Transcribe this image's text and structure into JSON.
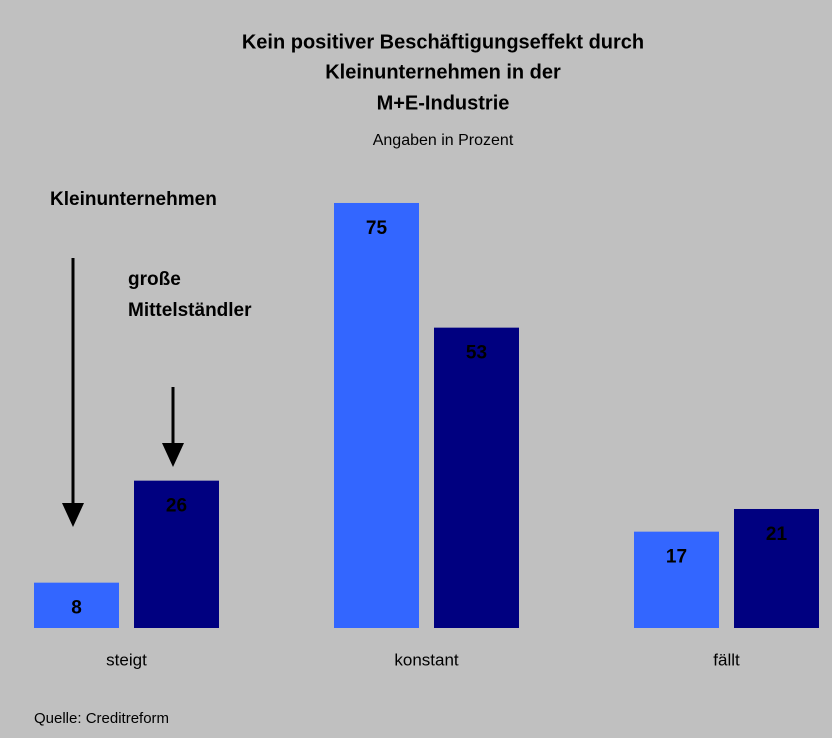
{
  "chart_data": {
    "type": "bar",
    "title": [
      "Kein positiver Beschäftigungseffekt durch",
      "Kleinunternehmen in der",
      "M+E-Industrie"
    ],
    "subtitle": "Angaben in Prozent",
    "categories": [
      "steigt",
      "konstant",
      "fällt"
    ],
    "series": [
      {
        "name": "Kleinunternehmen",
        "color": "#3366ff",
        "values": [
          8,
          75,
          17
        ]
      },
      {
        "name": "große Mittelständler",
        "color": "#000080",
        "values": [
          26,
          53,
          21
        ]
      }
    ],
    "source": "Quelle: Creditreform"
  }
}
